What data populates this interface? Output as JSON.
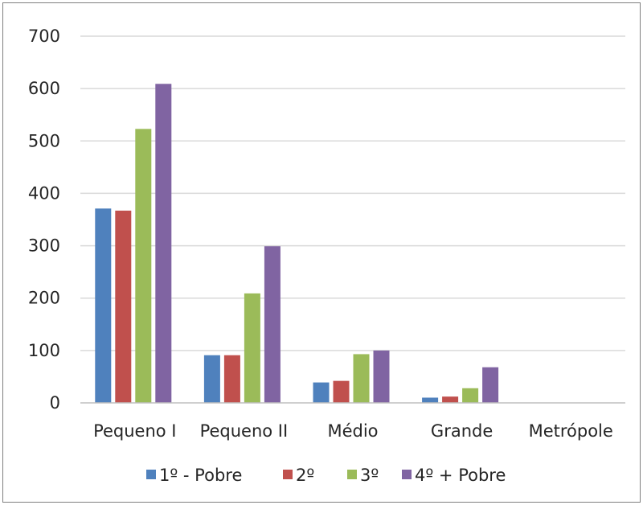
{
  "chart_data": {
    "type": "bar",
    "categories": [
      "Pequeno I",
      "Pequeno II",
      "Médio",
      "Grande",
      "Metrópole"
    ],
    "series": [
      {
        "name": "1º - Pobre",
        "color": "#4f81bd",
        "values": [
          371,
          91,
          39,
          10,
          0
        ]
      },
      {
        "name": "2º",
        "color": "#c0504d",
        "values": [
          367,
          91,
          42,
          12,
          0
        ]
      },
      {
        "name": "3º",
        "color": "#9bbb59",
        "values": [
          523,
          209,
          93,
          28,
          0
        ]
      },
      {
        "name": "4º + Pobre",
        "color": "#8064a2",
        "values": [
          609,
          299,
          100,
          68,
          0
        ]
      }
    ],
    "ylim": [
      0,
      700
    ],
    "yticks": [
      0,
      100,
      200,
      300,
      400,
      500,
      600,
      700
    ],
    "grid": true,
    "legend_position": "bottom"
  }
}
